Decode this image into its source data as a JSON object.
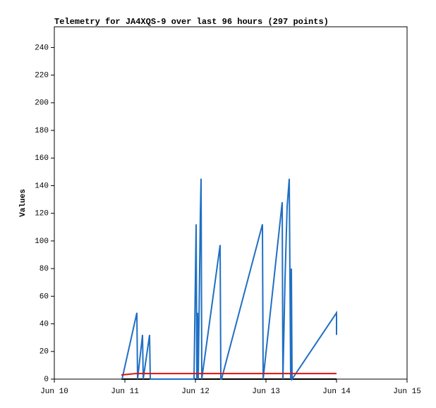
{
  "chart_data": {
    "type": "line",
    "title": "Telemetry for JA4XQS-9 over last 96 hours (297 points)",
    "y_label": "Values",
    "xlim": [
      10,
      15
    ],
    "xticks": [
      {
        "value": 10,
        "label": "Jun 10"
      },
      {
        "value": 11,
        "label": "Jun 11"
      },
      {
        "value": 12,
        "label": "Jun 12"
      },
      {
        "value": 13,
        "label": "Jun 13"
      },
      {
        "value": 14,
        "label": "Jun 14"
      },
      {
        "value": 15,
        "label": "Jun 15"
      }
    ],
    "ylim": [
      0,
      255
    ],
    "yticks": [
      0,
      20,
      40,
      60,
      80,
      100,
      120,
      140,
      160,
      180,
      200,
      220,
      240
    ],
    "grid": false,
    "series": [
      {
        "color": "#000000",
        "x": [
          10.95,
          14.0
        ],
        "values": [
          0,
          0
        ]
      },
      {
        "color": "#1f6fc4",
        "x": [
          10.96,
          11.17,
          11.18,
          11.25,
          11.26,
          11.35,
          11.36,
          11.98,
          12.01,
          12.02,
          12.03,
          12.04,
          12.07,
          12.08,
          12.09,
          12.35,
          12.36,
          12.37,
          12.95,
          12.96,
          13.23,
          13.24,
          13.27,
          13.3,
          13.33,
          13.35,
          13.36,
          13.37,
          14.0,
          14.0
        ],
        "values": [
          0,
          48,
          0,
          32,
          0,
          32,
          0,
          0,
          112,
          0,
          48,
          0,
          120,
          145,
          0,
          97,
          0,
          0,
          112,
          0,
          128,
          0,
          72,
          125,
          145,
          0,
          80,
          0,
          48,
          32
        ]
      },
      {
        "color": "#e01010",
        "x": [
          10.95,
          11.15,
          14.0
        ],
        "values": [
          3,
          4,
          4
        ]
      }
    ]
  }
}
